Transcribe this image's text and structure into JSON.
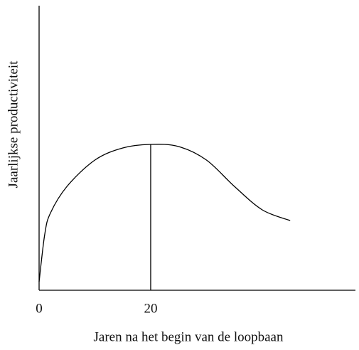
{
  "chart_data": {
    "type": "line",
    "xlabel": "Jaren na het begin van de loopbaan",
    "ylabel": "Jaarlijkse productiviteit",
    "x": [
      0,
      1,
      2,
      5,
      10,
      15,
      20,
      25,
      30,
      35,
      40,
      45
    ],
    "series": [
      {
        "color": "#000000",
        "values": [
          3,
          19.5,
          27,
          36.5,
          45.75,
          50,
          51.25,
          50.5,
          45.75,
          36.5,
          28.25,
          24.5
        ]
      }
    ],
    "reference_x": 20,
    "xlim": [
      0,
      56.7
    ],
    "ylim": [
      0,
      100
    ],
    "xticks": [
      0,
      20
    ],
    "yticks": []
  }
}
